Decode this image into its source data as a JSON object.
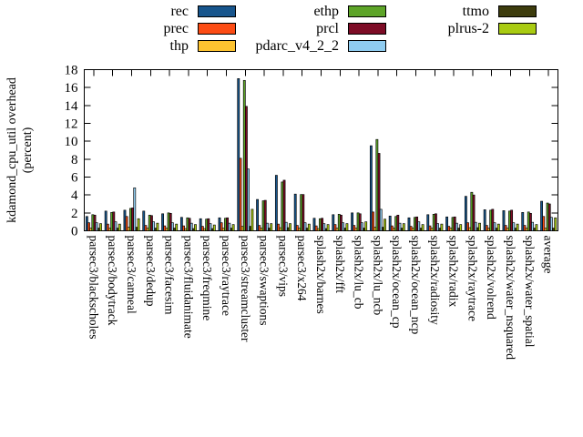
{
  "page": {
    "background": "#ffffff",
    "border_color": "#000000"
  },
  "legend": {
    "position": "top",
    "columns": [
      {
        "items": [
          {
            "label": "rec",
            "color": "#17558c"
          },
          {
            "label": "prec",
            "color": "#fc4c14"
          },
          {
            "label": "thp",
            "color": "#fdc330"
          }
        ]
      },
      {
        "items": [
          {
            "label": "ethp",
            "color": "#5da428"
          },
          {
            "label": "prcl",
            "color": "#7d0c26"
          },
          {
            "label": "pdarc_v4_2_2",
            "color": "#8fccf0"
          }
        ]
      },
      {
        "items": [
          {
            "label": "ttmo",
            "color": "#3d3c0d"
          },
          {
            "label": "plrus-2",
            "color": "#a9cb12"
          }
        ]
      }
    ]
  },
  "chart_data": {
    "type": "bar",
    "title": "",
    "xlabel": "",
    "ylabel": "kdamond_cpu_util overhead (percent)",
    "ylabel_lines": [
      "kdamond_cpu_util overhead",
      "(percent)"
    ],
    "ylim": [
      0,
      18
    ],
    "ytick_step": 2,
    "grid": false,
    "legend_position": "top",
    "categories": [
      "parsec3/blackscholes",
      "parsec3/bodytrack",
      "parsec3/canneal",
      "parsec3/dedup",
      "parsec3/facesim",
      "parsec3/fluidanimate",
      "parsec3/freqmine",
      "parsec3/raytrace",
      "parsec3/streamcluster",
      "parsec3/swaptions",
      "parsec3/vips",
      "parsec3/x264",
      "splash2x/barnes",
      "splash2x/fft",
      "splash2x/lu_cb",
      "splash2x/lu_ncb",
      "splash2x/ocean_cp",
      "splash2x/ocean_ncp",
      "splash2x/radiosity",
      "splash2x/radix",
      "splash2x/raytrace",
      "splash2x/volrend",
      "splash2x/water_nsquared",
      "splash2x/water_spatial",
      "average"
    ],
    "series": [
      {
        "name": "rec",
        "color": "#17558c",
        "values": [
          1.6,
          2.2,
          2.3,
          2.2,
          1.9,
          1.5,
          1.35,
          1.45,
          17.0,
          3.5,
          6.2,
          4.1,
          1.4,
          1.8,
          2.0,
          9.5,
          1.65,
          1.45,
          1.8,
          1.55,
          3.85,
          2.35,
          2.25,
          2.05,
          3.3
        ]
      },
      {
        "name": "prec",
        "color": "#fc4c14",
        "values": [
          0.9,
          0.75,
          1.6,
          0.6,
          0.55,
          0.55,
          0.5,
          0.9,
          8.1,
          0.6,
          0.75,
          0.6,
          0.55,
          0.7,
          0.6,
          2.1,
          0.55,
          0.5,
          0.55,
          0.5,
          0.9,
          0.6,
          0.6,
          0.6,
          1.6
        ]
      },
      {
        "name": "thp",
        "color": "#fdc330",
        "values": [
          0.3,
          0.3,
          0.4,
          0.3,
          0.3,
          0.25,
          0.25,
          0.3,
          0.5,
          0.3,
          0.35,
          0.3,
          0.25,
          0.3,
          0.3,
          0.4,
          0.3,
          0.3,
          0.3,
          0.3,
          0.35,
          0.3,
          0.3,
          0.3,
          0.3
        ]
      },
      {
        "name": "ethp",
        "color": "#5da428",
        "values": [
          1.8,
          2.05,
          2.5,
          1.75,
          2.0,
          1.45,
          1.3,
          1.4,
          16.8,
          3.35,
          5.45,
          4.05,
          1.35,
          1.85,
          2.0,
          10.2,
          1.6,
          1.5,
          1.85,
          1.5,
          4.3,
          2.3,
          2.2,
          2.1,
          3.1
        ]
      },
      {
        "name": "prcl",
        "color": "#7d0c26",
        "values": [
          1.75,
          2.1,
          2.55,
          1.7,
          1.95,
          1.4,
          1.35,
          1.45,
          13.9,
          3.4,
          5.65,
          4.05,
          1.4,
          1.75,
          1.9,
          8.65,
          1.75,
          1.55,
          1.9,
          1.55,
          4.0,
          2.4,
          2.3,
          1.95,
          3.0
        ]
      },
      {
        "name": "pdarc_v4_2_2",
        "color": "#8fccf0",
        "values": [
          0.9,
          1.0,
          4.8,
          1.0,
          0.9,
          0.85,
          0.8,
          0.85,
          6.9,
          0.85,
          0.95,
          0.9,
          0.8,
          0.9,
          0.9,
          2.4,
          0.85,
          1.0,
          0.8,
          0.85,
          0.95,
          0.9,
          0.9,
          0.95,
          1.5
        ]
      },
      {
        "name": "ttmo",
        "color": "#3d3c0d",
        "values": [
          0.3,
          0.3,
          0.4,
          0.3,
          0.3,
          0.25,
          0.25,
          0.3,
          0.5,
          0.3,
          0.35,
          0.3,
          0.25,
          0.3,
          0.3,
          0.4,
          0.3,
          0.3,
          0.3,
          0.3,
          0.35,
          0.3,
          0.3,
          0.3,
          0.3
        ]
      },
      {
        "name": "plrus-2",
        "color": "#a9cb12",
        "values": [
          0.8,
          0.75,
          1.35,
          0.85,
          0.75,
          0.7,
          0.65,
          0.7,
          2.4,
          0.8,
          0.8,
          0.75,
          0.7,
          0.8,
          1.0,
          1.3,
          0.8,
          0.7,
          0.75,
          0.7,
          0.85,
          0.75,
          0.75,
          0.7,
          1.45
        ]
      }
    ]
  }
}
